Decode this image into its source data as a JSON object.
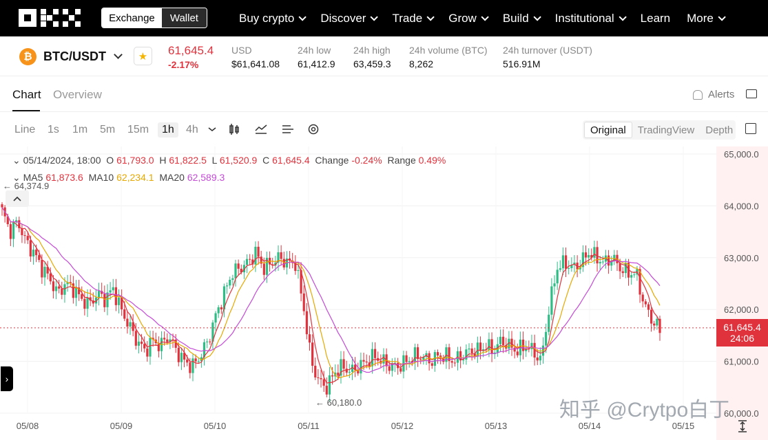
{
  "nav": {
    "logo": "OKX",
    "mode_toggle": [
      "Exchange",
      "Wallet"
    ],
    "items": [
      {
        "label": "Buy crypto",
        "dropdown": true
      },
      {
        "label": "Discover",
        "dropdown": true
      },
      {
        "label": "Trade",
        "dropdown": true
      },
      {
        "label": "Grow",
        "dropdown": true
      },
      {
        "label": "Build",
        "dropdown": true
      },
      {
        "label": "Institutional",
        "dropdown": true
      },
      {
        "label": "Learn",
        "dropdown": false
      },
      {
        "label": "More",
        "dropdown": true
      }
    ]
  },
  "ticker": {
    "coin_symbol": "₿",
    "pair": "BTC/USDT",
    "price": "61,645.4",
    "change": "-2.17%",
    "stats": [
      {
        "label": "USD",
        "value": "$61,641.08"
      },
      {
        "label": "24h low",
        "value": "61,412.9"
      },
      {
        "label": "24h high",
        "value": "63,459.3"
      },
      {
        "label": "24h volume (BTC)",
        "value": "8,262"
      },
      {
        "label": "24h turnover (USDT)",
        "value": "516.91M"
      }
    ]
  },
  "tabs": {
    "chart": "Chart",
    "overview": "Overview",
    "alerts": "Alerts"
  },
  "toolbar": {
    "timeframes": [
      "Line",
      "1s",
      "1m",
      "5m",
      "15m",
      "1h",
      "4h"
    ],
    "selected": "1h",
    "views": [
      "Original",
      "TradingView",
      "Depth"
    ]
  },
  "chart": {
    "ohlc": {
      "date": "05/14/2024, 18:00",
      "o_label": "O",
      "o": "61,793.0",
      "h_label": "H",
      "h": "61,822.5",
      "l_label": "L",
      "l": "61,520.9",
      "c_label": "C",
      "c": "61,645.4",
      "change_label": "Change",
      "change": "-0.24%",
      "range_label": "Range",
      "range": "0.49%"
    },
    "ma": {
      "ma5_label": "MA5",
      "ma5": "61,873.6",
      "ma10_label": "MA10",
      "ma10": "62,234.1",
      "ma20_label": "MA20",
      "ma20": "62,589.3"
    },
    "last_price": "61,645.4",
    "countdown": "24:06",
    "high_marker": "64,374.9",
    "low_marker": "60,180.0",
    "watermark": "知乎 @Crytpo白丁",
    "colors": {
      "up": "#2ebd85",
      "down": "#e0323c",
      "ma5": "#e0323c",
      "ma10": "#e6a800",
      "ma20": "#c44ad6"
    }
  },
  "chart_data": {
    "type": "candlestick",
    "y_ticks": [
      "65,000.0",
      "64,000.0",
      "63,000.0",
      "62,000.0",
      "61,000.0",
      "60,000.0"
    ],
    "ylim": [
      60000,
      65000
    ],
    "x_ticks": [
      "05/08",
      "05/09",
      "05/10",
      "05/11",
      "05/12",
      "05/13",
      "05/14",
      "05/15"
    ],
    "close_path": [
      63900,
      63500,
      63700,
      63300,
      63100,
      62800,
      62600,
      62300,
      62500,
      62400,
      62200,
      62100,
      62300,
      62200,
      62400,
      62000,
      61700,
      61400,
      61200,
      61400,
      61300,
      61500,
      61200,
      61000,
      60900,
      61100,
      61400,
      61900,
      62300,
      62700,
      62800,
      62900,
      63100,
      62800,
      62900,
      63000,
      62900,
      62900,
      62100,
      61000,
      60600,
      60500,
      60800,
      60900,
      60800,
      60900,
      61000,
      61100,
      61000,
      60900,
      60900,
      61000,
      61100,
      61100,
      61000,
      61100,
      61100,
      61000,
      61100,
      61200,
      61200,
      61300,
      61200,
      61400,
      61300,
      61200,
      61300,
      61200,
      61000,
      62000,
      62800,
      62900,
      62800,
      62900,
      63100,
      63000,
      62900,
      63000,
      62800,
      62700,
      62700,
      62100,
      61800,
      61600
    ]
  }
}
